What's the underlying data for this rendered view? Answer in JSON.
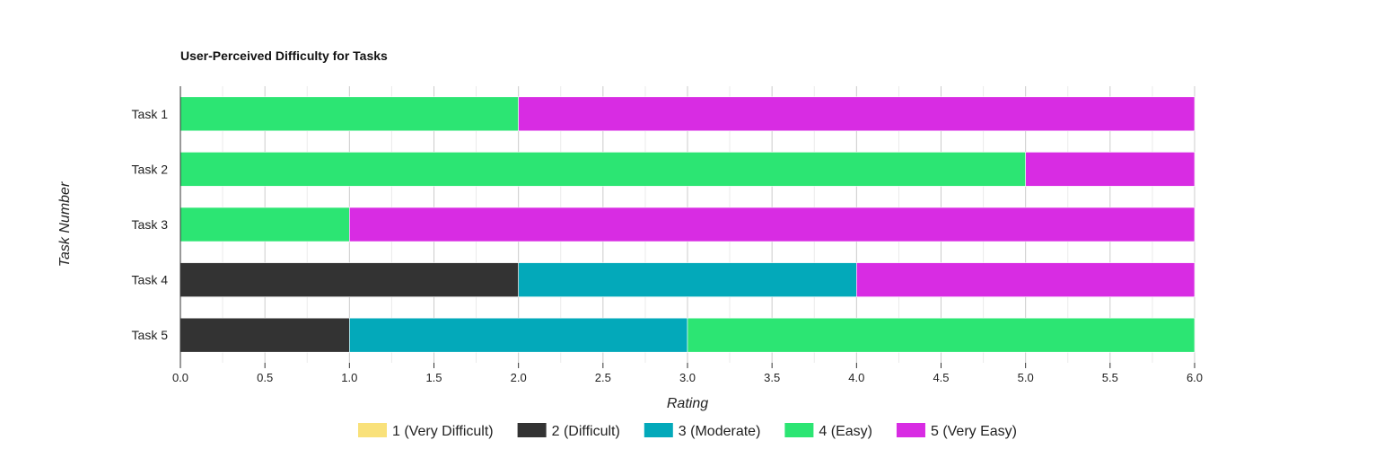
{
  "chart_data": {
    "type": "bar",
    "orientation": "horizontal",
    "stacked": true,
    "title": "User-Perceived Difficulty for Tasks",
    "xlabel": "Rating",
    "ylabel": "Task Number",
    "xlim": [
      0,
      6
    ],
    "xticks": [
      "0.0",
      "0.5",
      "1.0",
      "1.5",
      "2.0",
      "2.5",
      "3.0",
      "3.5",
      "4.0",
      "4.5",
      "5.0",
      "5.5",
      "6.0"
    ],
    "categories": [
      "Task 1",
      "Task 2",
      "Task 3",
      "Task 4",
      "Task 5"
    ],
    "series": [
      {
        "name": "1 (Very Difficult)",
        "color": "#f9e17a",
        "values": [
          0,
          0,
          0,
          0,
          0
        ]
      },
      {
        "name": "2 (Difficult)",
        "color": "#333333",
        "values": [
          0,
          0,
          0,
          2,
          1
        ]
      },
      {
        "name": "3 (Moderate)",
        "color": "#03a9ba",
        "values": [
          0,
          0,
          0,
          2,
          2
        ]
      },
      {
        "name": "4 (Easy)",
        "color": "#2ce573",
        "values": [
          2,
          5,
          1,
          0,
          3
        ]
      },
      {
        "name": "5 (Very Easy)",
        "color": "#d82ce3",
        "values": [
          4,
          1,
          5,
          2,
          0
        ]
      }
    ],
    "grid": true,
    "legend_position": "bottom"
  }
}
